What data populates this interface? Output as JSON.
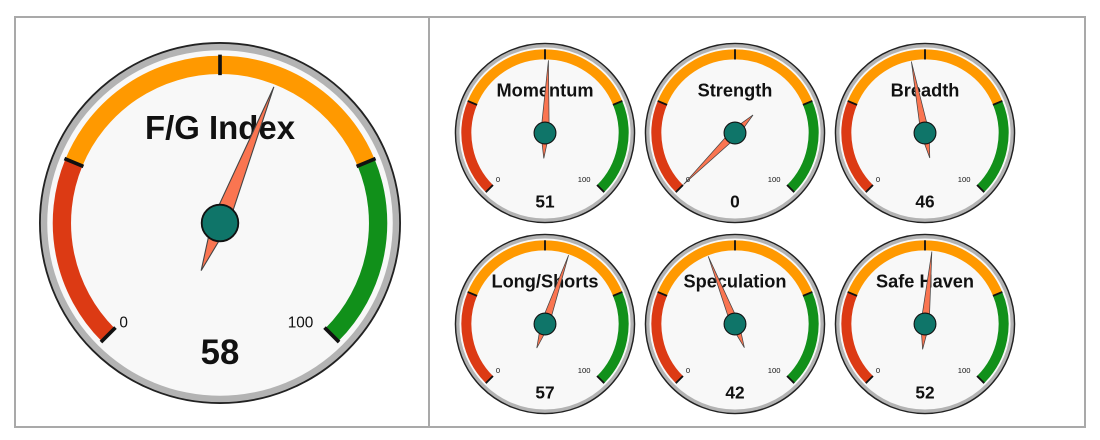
{
  "colors": {
    "fear": "#dc3a14",
    "neutral": "#ff9900",
    "greed": "#11901a",
    "face": "#f8f8f8",
    "rim": "#b3b3b3",
    "needle": "#fa7551",
    "hub": "#0f7569"
  },
  "scale": {
    "min_label": "0",
    "max_label": "100",
    "min": 0,
    "max": 100
  },
  "main_gauge": {
    "title": "F/G Index",
    "value": 58
  },
  "sub_gauges": [
    {
      "title": "Momentum",
      "value": 51
    },
    {
      "title": "Strength",
      "value": 0
    },
    {
      "title": "Breadth",
      "value": 46
    },
    {
      "title": "Long/Shorts",
      "value": 57
    },
    {
      "title": "Speculation",
      "value": 42
    },
    {
      "title": "Safe Haven",
      "value": 52
    }
  ]
}
